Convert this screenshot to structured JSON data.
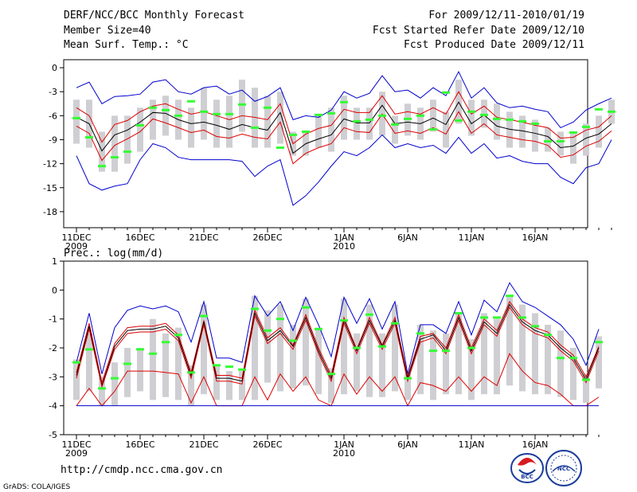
{
  "header": {
    "left": [
      "DERF/NCC/BCC Monthly Forecast",
      "Member Size=40",
      "Mean Surf. Temp.: °C"
    ],
    "right": [
      "For 2009/12/11-2010/01/19",
      "Fcst Started Refer Date 2009/12/10",
      "Fcst Produced Date 2009/12/11"
    ]
  },
  "panel2_label": "Prec.: log(mm/d)",
  "footer": {
    "url": "http://cmdp.ncc.cma.gov.cn",
    "credit": "GrADS: COLA/IGES"
  },
  "logos": {
    "bcc": "BCC",
    "ncc": "NCC"
  },
  "colors": {
    "blue": "#0000cc",
    "red": "#dd0000",
    "black": "#000000",
    "green": "#33ff33",
    "gray": "#cfcfd3"
  },
  "chart_data": [
    {
      "type": "line",
      "title": "Mean Surf. Temp.: °C",
      "days": 40,
      "ylim": [
        -20,
        1
      ],
      "yticks": [
        0,
        -3,
        -6,
        -9,
        -12,
        -15,
        -18
      ],
      "xticks": [
        {
          "day": 0,
          "label": "11DEC",
          "sub": "2009"
        },
        {
          "day": 5,
          "label": "16DEC",
          "sub": ""
        },
        {
          "day": 10,
          "label": "21DEC",
          "sub": ""
        },
        {
          "day": 15,
          "label": "26DEC",
          "sub": ""
        },
        {
          "day": 21,
          "label": "1JAN",
          "sub": "2010"
        },
        {
          "day": 26,
          "label": "6JAN",
          "sub": ""
        },
        {
          "day": 31,
          "label": "11JAN",
          "sub": ""
        },
        {
          "day": 36,
          "label": "16JAN",
          "sub": ""
        }
      ],
      "series": [
        {
          "name": "ensemble max",
          "color": "blue",
          "values": [
            -2.5,
            -1.8,
            -4.5,
            -3.6,
            -3.5,
            -3.3,
            -1.8,
            -1.5,
            -3,
            -3.3,
            -2.5,
            -2.3,
            -3.3,
            -2.8,
            -4.2,
            -3.6,
            -2.5,
            -6.5,
            -6,
            -6.2,
            -5.3,
            -3,
            -3.8,
            -3.2,
            -1,
            -3,
            -2.8,
            -3.8,
            -2.5,
            -3.5,
            -0.5,
            -3.8,
            -2.5,
            -4.4,
            -5,
            -4.8,
            -5.2,
            -5.5,
            -7.5,
            -6.8,
            -5.3,
            -4.5,
            -3.8
          ]
        },
        {
          "name": "upper",
          "color": "red",
          "values": [
            -5,
            -6,
            -9.3,
            -7.1,
            -6.6,
            -5.5,
            -4.8,
            -4.5,
            -5.2,
            -5.8,
            -5.5,
            -6,
            -6.5,
            -6,
            -6.2,
            -6.5,
            -4.5,
            -9.5,
            -8.3,
            -7.6,
            -7.2,
            -5.2,
            -5.6,
            -5.6,
            -3.5,
            -5.8,
            -5.5,
            -5.8,
            -5,
            -5.8,
            -3,
            -5.8,
            -4.8,
            -6.2,
            -6.5,
            -6.8,
            -7.2,
            -7.5,
            -8.8,
            -8.7,
            -7.8,
            -7.4,
            -6
          ]
        },
        {
          "name": "ensemble mean",
          "color": "black",
          "values": [
            -6.2,
            -7,
            -10.4,
            -8.4,
            -7.8,
            -6.8,
            -5.6,
            -5.7,
            -6.5,
            -7,
            -6.8,
            -7.2,
            -7.7,
            -7.1,
            -7.5,
            -7.8,
            -5.6,
            -10.7,
            -9.5,
            -8.9,
            -8.4,
            -6.4,
            -6.9,
            -6.9,
            -4.7,
            -7,
            -6.8,
            -7,
            -6.3,
            -7.1,
            -4.3,
            -7,
            -5.9,
            -7.3,
            -7.7,
            -7.9,
            -8.2,
            -8.6,
            -10,
            -9.8,
            -8.8,
            -8.3,
            -7
          ]
        },
        {
          "name": "lower",
          "color": "red",
          "values": [
            -7.3,
            -8.2,
            -11.6,
            -9.7,
            -8.9,
            -8,
            -6.4,
            -6.9,
            -7.5,
            -8.1,
            -7.8,
            -8.6,
            -8.8,
            -8.3,
            -8.7,
            -8.9,
            -6.8,
            -12,
            -10.7,
            -10,
            -9.5,
            -7.5,
            -8,
            -8.1,
            -5.8,
            -8.2,
            -7.9,
            -8.2,
            -7.5,
            -8.3,
            -5.5,
            -8.2,
            -7,
            -8.4,
            -8.7,
            -9,
            -9.2,
            -9.7,
            -11.2,
            -10.9,
            -9.8,
            -9.2,
            -7.9
          ]
        },
        {
          "name": "ensemble min",
          "color": "blue",
          "values": [
            -11,
            -14.5,
            -15.3,
            -14.8,
            -14.5,
            -11.5,
            -9.5,
            -10,
            -11.2,
            -11.5,
            -11.5,
            -11.5,
            -11.5,
            -11.7,
            -13.6,
            -12.3,
            -11.5,
            -17.2,
            -16,
            -14.3,
            -12.3,
            -10.5,
            -11,
            -10,
            -8.4,
            -10,
            -9.5,
            -10,
            -9.7,
            -10.7,
            -8.7,
            -10.7,
            -9.5,
            -11.3,
            -11,
            -11.7,
            -12,
            -12,
            -13.7,
            -14.5,
            -12.5,
            -12,
            -9
          ]
        }
      ],
      "boxes": [
        [
          -4,
          -9.5
        ],
        [
          -4,
          -10
        ],
        [
          -8,
          -13
        ],
        [
          -6,
          -13
        ],
        [
          -6,
          -12
        ],
        [
          -5,
          -10.5
        ],
        [
          -4,
          -9
        ],
        [
          -3.5,
          -8.5
        ],
        [
          -4,
          -9
        ],
        [
          -5,
          -10
        ],
        [
          -2.5,
          -9
        ],
        [
          -4,
          -10
        ],
        [
          -3.5,
          -10
        ],
        [
          -1.5,
          -8
        ],
        [
          -2.5,
          -10
        ],
        [
          -3.5,
          -10
        ],
        [
          -3,
          -9.5
        ],
        [
          -8,
          -11
        ],
        [
          -8,
          -11
        ],
        [
          -6,
          -10
        ],
        [
          -5,
          -10.5
        ],
        [
          -3.5,
          -9
        ],
        [
          -5,
          -9
        ],
        [
          -5,
          -9
        ],
        [
          -3,
          -8.5
        ],
        [
          -6,
          -9.5
        ],
        [
          -4.5,
          -8.5
        ],
        [
          -5,
          -9
        ],
        [
          -4,
          -8
        ],
        [
          -5.5,
          -10
        ],
        [
          -1.5,
          -7
        ],
        [
          -4,
          -8.5
        ],
        [
          -4,
          -7.5
        ],
        [
          -4.5,
          -9
        ],
        [
          -5.5,
          -10
        ],
        [
          -6,
          -10
        ],
        [
          -6.5,
          -10.5
        ],
        [
          -7.5,
          -10.5
        ],
        [
          -8,
          -11
        ],
        [
          -8,
          -12
        ],
        [
          -7,
          -11
        ],
        [
          -6,
          -10
        ],
        [
          -4,
          -7
        ]
      ],
      "observed": [
        -6.3,
        -8.7,
        -12.3,
        -11.2,
        -10.5,
        -7.2,
        -5,
        -5.3,
        -6,
        -4.2,
        -5.5,
        -5.8,
        -5.8,
        -4.6,
        -7.5,
        -5,
        -10,
        -8.4,
        -8,
        -5.9,
        -5.7,
        -4.3,
        -6.7,
        -6.5,
        -6,
        -7.1,
        -6.4,
        -6,
        -7.7,
        -3.1,
        -6.6,
        -5.5,
        -5.9,
        -6.4,
        -6.5,
        -6.7,
        -7,
        -9.2,
        -9.2,
        -8.1,
        -7.4,
        -5.2,
        -5.5
      ]
    },
    {
      "type": "line",
      "title": "Prec.: log(mm/d)",
      "days": 40,
      "ylim": [
        -5,
        1
      ],
      "yticks": [
        1,
        0,
        -1,
        -2,
        -3,
        -4,
        -5
      ],
      "xticks": [
        {
          "day": 0,
          "label": "11DEC",
          "sub": "2009"
        },
        {
          "day": 5,
          "label": "16DEC",
          "sub": ""
        },
        {
          "day": 10,
          "label": "21DEC",
          "sub": ""
        },
        {
          "day": 15,
          "label": "26DEC",
          "sub": ""
        },
        {
          "day": 21,
          "label": "1JAN",
          "sub": "2010"
        },
        {
          "day": 26,
          "label": "6JAN",
          "sub": ""
        },
        {
          "day": 31,
          "label": "11JAN",
          "sub": ""
        },
        {
          "day": 36,
          "label": "16JAN",
          "sub": ""
        }
      ],
      "series": [
        {
          "name": "ensemble max",
          "color": "blue",
          "values": [
            -2.5,
            -0.8,
            -2.9,
            -1.3,
            -0.7,
            -0.55,
            -0.65,
            -0.55,
            -0.75,
            -1.8,
            -0.4,
            -2.35,
            -2.35,
            -2.5,
            -0.2,
            -0.9,
            -0.4,
            -1.4,
            -0.25,
            -1.2,
            -2.3,
            -0.25,
            -1.15,
            -0.3,
            -1.35,
            -0.4,
            -2.9,
            -1.2,
            -1.2,
            -1.5,
            -0.4,
            -1.55,
            -0.35,
            -0.75,
            0.25,
            -0.4,
            -0.6,
            -0.9,
            -1.2,
            -1.7,
            -2.6,
            -1.35
          ]
        },
        {
          "name": "upper",
          "color": "red",
          "values": [
            -2.85,
            -1.15,
            -3.2,
            -1.85,
            -1.3,
            -1.25,
            -1.25,
            -1.15,
            -1.55,
            -2.85,
            -1.05,
            -2.95,
            -2.95,
            -3.05,
            -0.7,
            -1.65,
            -1.3,
            -1.9,
            -0.85,
            -2,
            -2.95,
            -0.95,
            -2.05,
            -0.95,
            -1.9,
            -0.95,
            -3,
            -1.6,
            -1.5,
            -2,
            -0.85,
            -2,
            -1,
            -1.4,
            -0.4,
            -1,
            -1.3,
            -1.45,
            -1.9,
            -2.25,
            -3,
            -1.95
          ]
        },
        {
          "name": "ensemble mean",
          "color": "black",
          "values": [
            -2.95,
            -1.25,
            -3.3,
            -1.95,
            -1.4,
            -1.35,
            -1.35,
            -1.25,
            -1.65,
            -2.95,
            -1.1,
            -3.05,
            -3.05,
            -3.15,
            -0.8,
            -1.75,
            -1.4,
            -1.95,
            -0.95,
            -2.1,
            -3.05,
            -1.05,
            -2.1,
            -1.05,
            -1.95,
            -1.05,
            -3.05,
            -1.7,
            -1.55,
            -2.1,
            -0.95,
            -2.1,
            -1.1,
            -1.5,
            -0.5,
            -1.1,
            -1.4,
            -1.55,
            -2,
            -2.35,
            -3.1,
            -2
          ]
        },
        {
          "name": "lower",
          "color": "red",
          "values": [
            -3.05,
            -1.35,
            -3.35,
            -2.05,
            -1.5,
            -1.45,
            -1.45,
            -1.35,
            -1.75,
            -3.05,
            -1.2,
            -3.15,
            -3.15,
            -3.25,
            -0.9,
            -1.85,
            -1.5,
            -2.05,
            -1.05,
            -2.2,
            -3.15,
            -1.15,
            -2.2,
            -1.15,
            -2.05,
            -1.15,
            -3.15,
            -1.8,
            -1.65,
            -2.2,
            -1.05,
            -2.2,
            -1.2,
            -1.6,
            -0.6,
            -1.2,
            -1.5,
            -1.65,
            -2.1,
            -2.45,
            -3.2,
            -2.1
          ]
        },
        {
          "name": "ensemble min",
          "color": "red",
          "values": [
            -4,
            -3.4,
            -4,
            -3.5,
            -2.8,
            -2.8,
            -2.8,
            -2.85,
            -2.9,
            -3.9,
            -3,
            -4,
            -4,
            -4,
            -3,
            -3.8,
            -2.9,
            -3.5,
            -3,
            -3.8,
            -4,
            -2.9,
            -3.6,
            -3,
            -3.5,
            -3,
            -4,
            -3.2,
            -3.3,
            -3.5,
            -3,
            -3.5,
            -3,
            -3.3,
            -2.2,
            -2.8,
            -3.2,
            -3.3,
            -3.6,
            -4,
            -4,
            -3.7
          ]
        },
        {
          "name": "floor",
          "color": "blue",
          "values": [
            -4,
            -4,
            -4,
            -4,
            -4,
            -4,
            -4,
            -4,
            -4,
            -4,
            -4,
            -4,
            -4,
            -4,
            -4,
            -4,
            -4,
            -4,
            -4,
            -4,
            -4,
            -4,
            -4,
            -4,
            -4,
            -4,
            -4,
            -4,
            -4,
            -4,
            -4,
            -4,
            -4,
            -4,
            -4,
            -4,
            -4,
            -4,
            -4,
            -4,
            -4,
            -4
          ]
        }
      ],
      "boxes": [
        [
          -2.4,
          -3.8
        ],
        [
          -1.5,
          -3.5
        ],
        [
          -3,
          -4
        ],
        [
          -2.5,
          -4
        ],
        [
          -2,
          -3.7
        ],
        [
          -2,
          -3.5
        ],
        [
          -1,
          -3.8
        ],
        [
          -1.5,
          -3.7
        ],
        [
          -1.3,
          -3.8
        ],
        [
          -2.6,
          -4
        ],
        [
          -0.5,
          -3.6
        ],
        [
          -2.6,
          -3.8
        ],
        [
          -2.8,
          -3.8
        ],
        [
          -2.8,
          -3.8
        ],
        [
          -0.2,
          -3.8
        ],
        [
          -0.7,
          -3.2
        ],
        [
          -0.5,
          -3.5
        ],
        [
          -1.2,
          -3.4
        ],
        [
          -0.3,
          -3.3
        ],
        [
          -1.3,
          -3.6
        ],
        [
          -2.7,
          -3.9
        ],
        [
          -0.3,
          -3.6
        ],
        [
          -1.5,
          -3.5
        ],
        [
          -0.5,
          -3.7
        ],
        [
          -1.5,
          -3.7
        ],
        [
          -0.5,
          -3.5
        ],
        [
          -2.9,
          -3.8
        ],
        [
          -1.2,
          -3.6
        ],
        [
          -1.4,
          -3.8
        ],
        [
          -1.5,
          -3.6
        ],
        [
          -0.8,
          -3.6
        ],
        [
          -1.7,
          -3.8
        ],
        [
          -0.8,
          -3.6
        ],
        [
          -1,
          -3.6
        ],
        [
          -0.2,
          -3.3
        ],
        [
          -0.5,
          -3.5
        ],
        [
          -0.8,
          -3.6
        ],
        [
          -1.2,
          -3.6
        ],
        [
          -1.4,
          -3.7
        ],
        [
          -2,
          -3.8
        ],
        [
          -2.9,
          -3.9
        ],
        [
          -1.6,
          -3.4
        ]
      ],
      "observed": [
        -2.5,
        -2.05,
        -3.4,
        -3.05,
        -2.55,
        -2.05,
        -2.2,
        -1.8,
        -1.55,
        -2.85,
        -0.9,
        -2.6,
        -2.65,
        -2.75,
        -0.65,
        -1.4,
        -1.0,
        -1.75,
        -0.6,
        -1.35,
        -2.9,
        -1.05,
        -2.0,
        -0.85,
        -1.95,
        -1.15,
        -3.05,
        -1.5,
        -2.1,
        -2.1,
        -0.8,
        -2.0,
        -0.95,
        -0.95,
        -0.2,
        -0.95,
        -1.25,
        -1.55,
        -2.35,
        -2.35,
        -3.1,
        -1.8
      ]
    }
  ]
}
